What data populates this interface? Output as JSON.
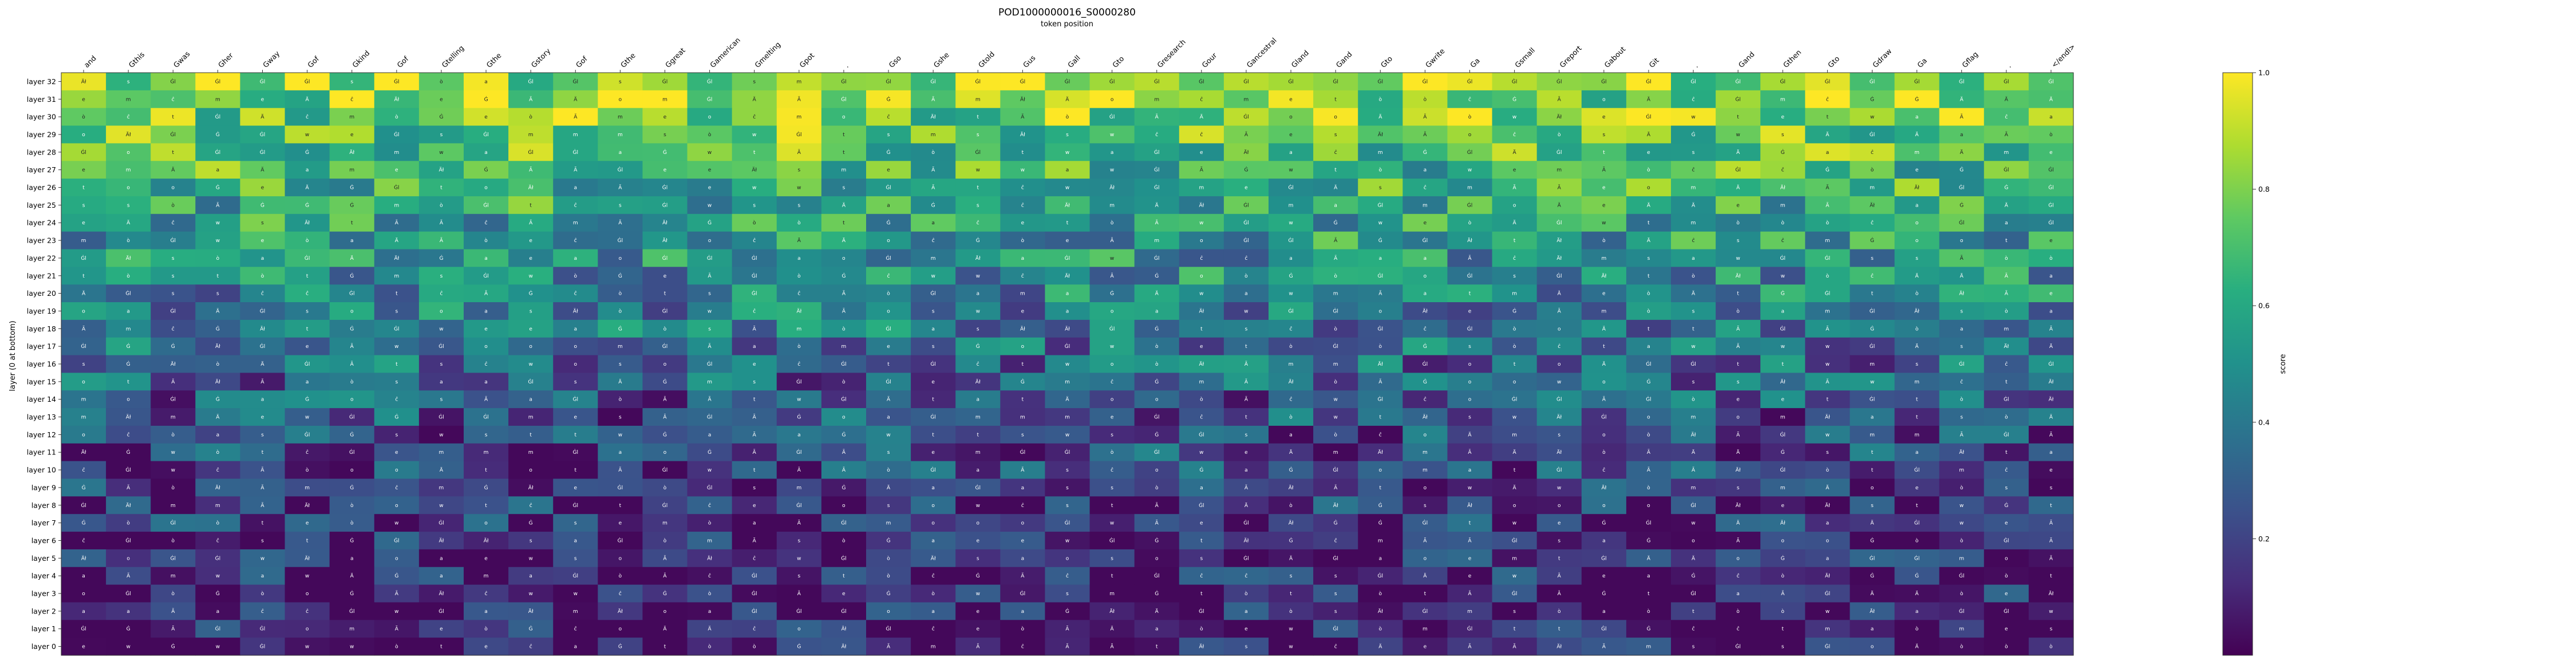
{
  "chart_data": {
    "type": "heatmap",
    "title": "POD1000000016_S0000280",
    "subtitle": "token position",
    "ylabel": "layer (0 at bottom)",
    "colorbar_label": "score",
    "colorbar_ticks": [
      "0.2",
      "0.4",
      "0.6",
      "0.8",
      "1.0"
    ],
    "colorbar_tick_values": [
      0.2,
      0.4,
      0.6,
      0.8,
      1.0
    ],
    "colormap": "viridis",
    "value_range": [
      0.0,
      1.0
    ],
    "x_tokens": [
      "and",
      "Gthis",
      "Gwas",
      "Gher",
      "Gway",
      "Gof",
      "Gkind",
      "Gof",
      "Gtelling",
      "Gthe",
      "Gstory",
      "Gof",
      "Gthe",
      "Ggreat",
      "Gamerican",
      "Gmelting",
      "Gpot",
      ".",
      "Gso",
      "Gshe",
      "Gtold",
      "Gus",
      "Gall",
      "Gto",
      "Gresearch",
      "Gour",
      "Gancestral",
      "Gland",
      "Gand",
      "Gto",
      "Gwrite",
      "Ga",
      "Gsmall",
      "Greport",
      "Gabout",
      "Git",
      ".",
      "Gand",
      "Gthen",
      "Gto",
      "Gdraw",
      "Ga",
      "Gflag",
      ".",
      "</endl>"
    ],
    "y_labels": [
      "layer 32",
      "layer 31",
      "layer 30",
      "layer 29",
      "layer 28",
      "layer 27",
      "layer 26",
      "layer 25",
      "layer 24",
      "layer 23",
      "layer 22",
      "layer 21",
      "layer 20",
      "layer 19",
      "layer 18",
      "layer 17",
      "layer 16",
      "layer 15",
      "layer 14",
      "layer 13",
      "layer 12",
      "layer 11",
      "layer 10",
      "layer 9",
      "layer 8",
      "layer 7",
      "layer 6",
      "layer 5",
      "layer 4",
      "layer 3",
      "layer 2",
      "layer 1",
      "layer 0"
    ],
    "cell_text_top_row": [
      "Äł",
      "s",
      "Ġl",
      "Ġl",
      "Ġl",
      "Ġl",
      "s",
      "Ġl",
      "ò",
      "a",
      "Ġl",
      "Ġl",
      "s",
      "Ġl",
      "Ġl",
      "s",
      "m",
      "Ġl",
      "Ġl",
      "Ġl",
      "Ġl",
      "Ġl",
      "Ġl",
      "Ġl",
      "Ġl",
      "Ġl",
      "Ġl",
      "Ġl",
      "Ġl",
      "Ġl",
      "Ġl",
      "Ġl",
      "Ġl",
      "Ġl",
      "Ġl",
      "Ġl",
      "Ġl",
      "Ġl",
      "Ġl",
      "Ġl",
      "Ġl",
      "Ġl",
      "Ġl",
      "Ġl",
      "Ġl"
    ]
  }
}
